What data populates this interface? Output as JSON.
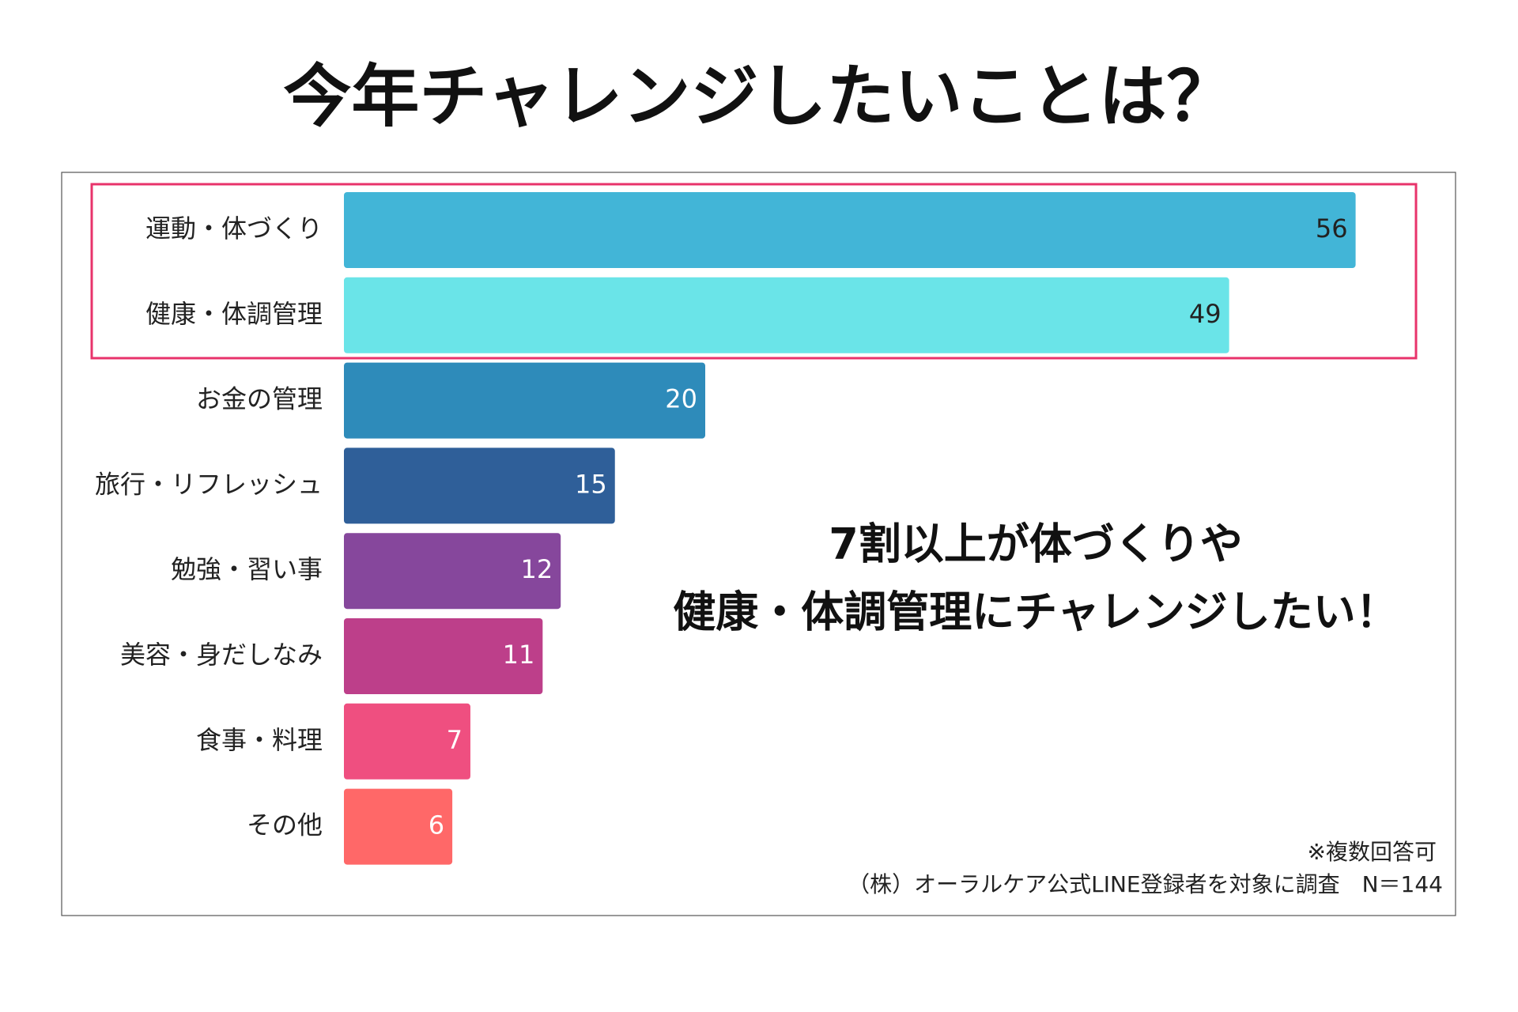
{
  "chart_data": {
    "type": "bar",
    "orientation": "horizontal",
    "title": "今年チャレンジしたいことは？",
    "categories": [
      "運動・体づくり",
      "健康・体調管理",
      "お金の管理",
      "旅行・リフレッシュ",
      "勉強・習い事",
      "美容・身だしなみ",
      "食事・料理",
      "その他"
    ],
    "values": [
      56,
      49,
      20,
      15,
      12,
      11,
      7,
      6
    ],
    "colors": [
      "#42b5d7",
      "#6ae4e8",
      "#2e8bba",
      "#2f5f99",
      "#86479c",
      "#bd3f8a",
      "#ef4f80",
      "#ff6868"
    ],
    "value_label_colors": [
      "#222222",
      "#222222",
      "#ffffff",
      "#ffffff",
      "#ffffff",
      "#ffffff",
      "#ffffff",
      "#ffffff"
    ],
    "annotation": [
      "7割以上が体づくりや",
      "健康・体調管理にチャレンジしたい！"
    ],
    "notes": [
      "※複数回答可",
      "（株）オーラルケア公式LINE登録者を対象に調査　N＝144"
    ]
  }
}
